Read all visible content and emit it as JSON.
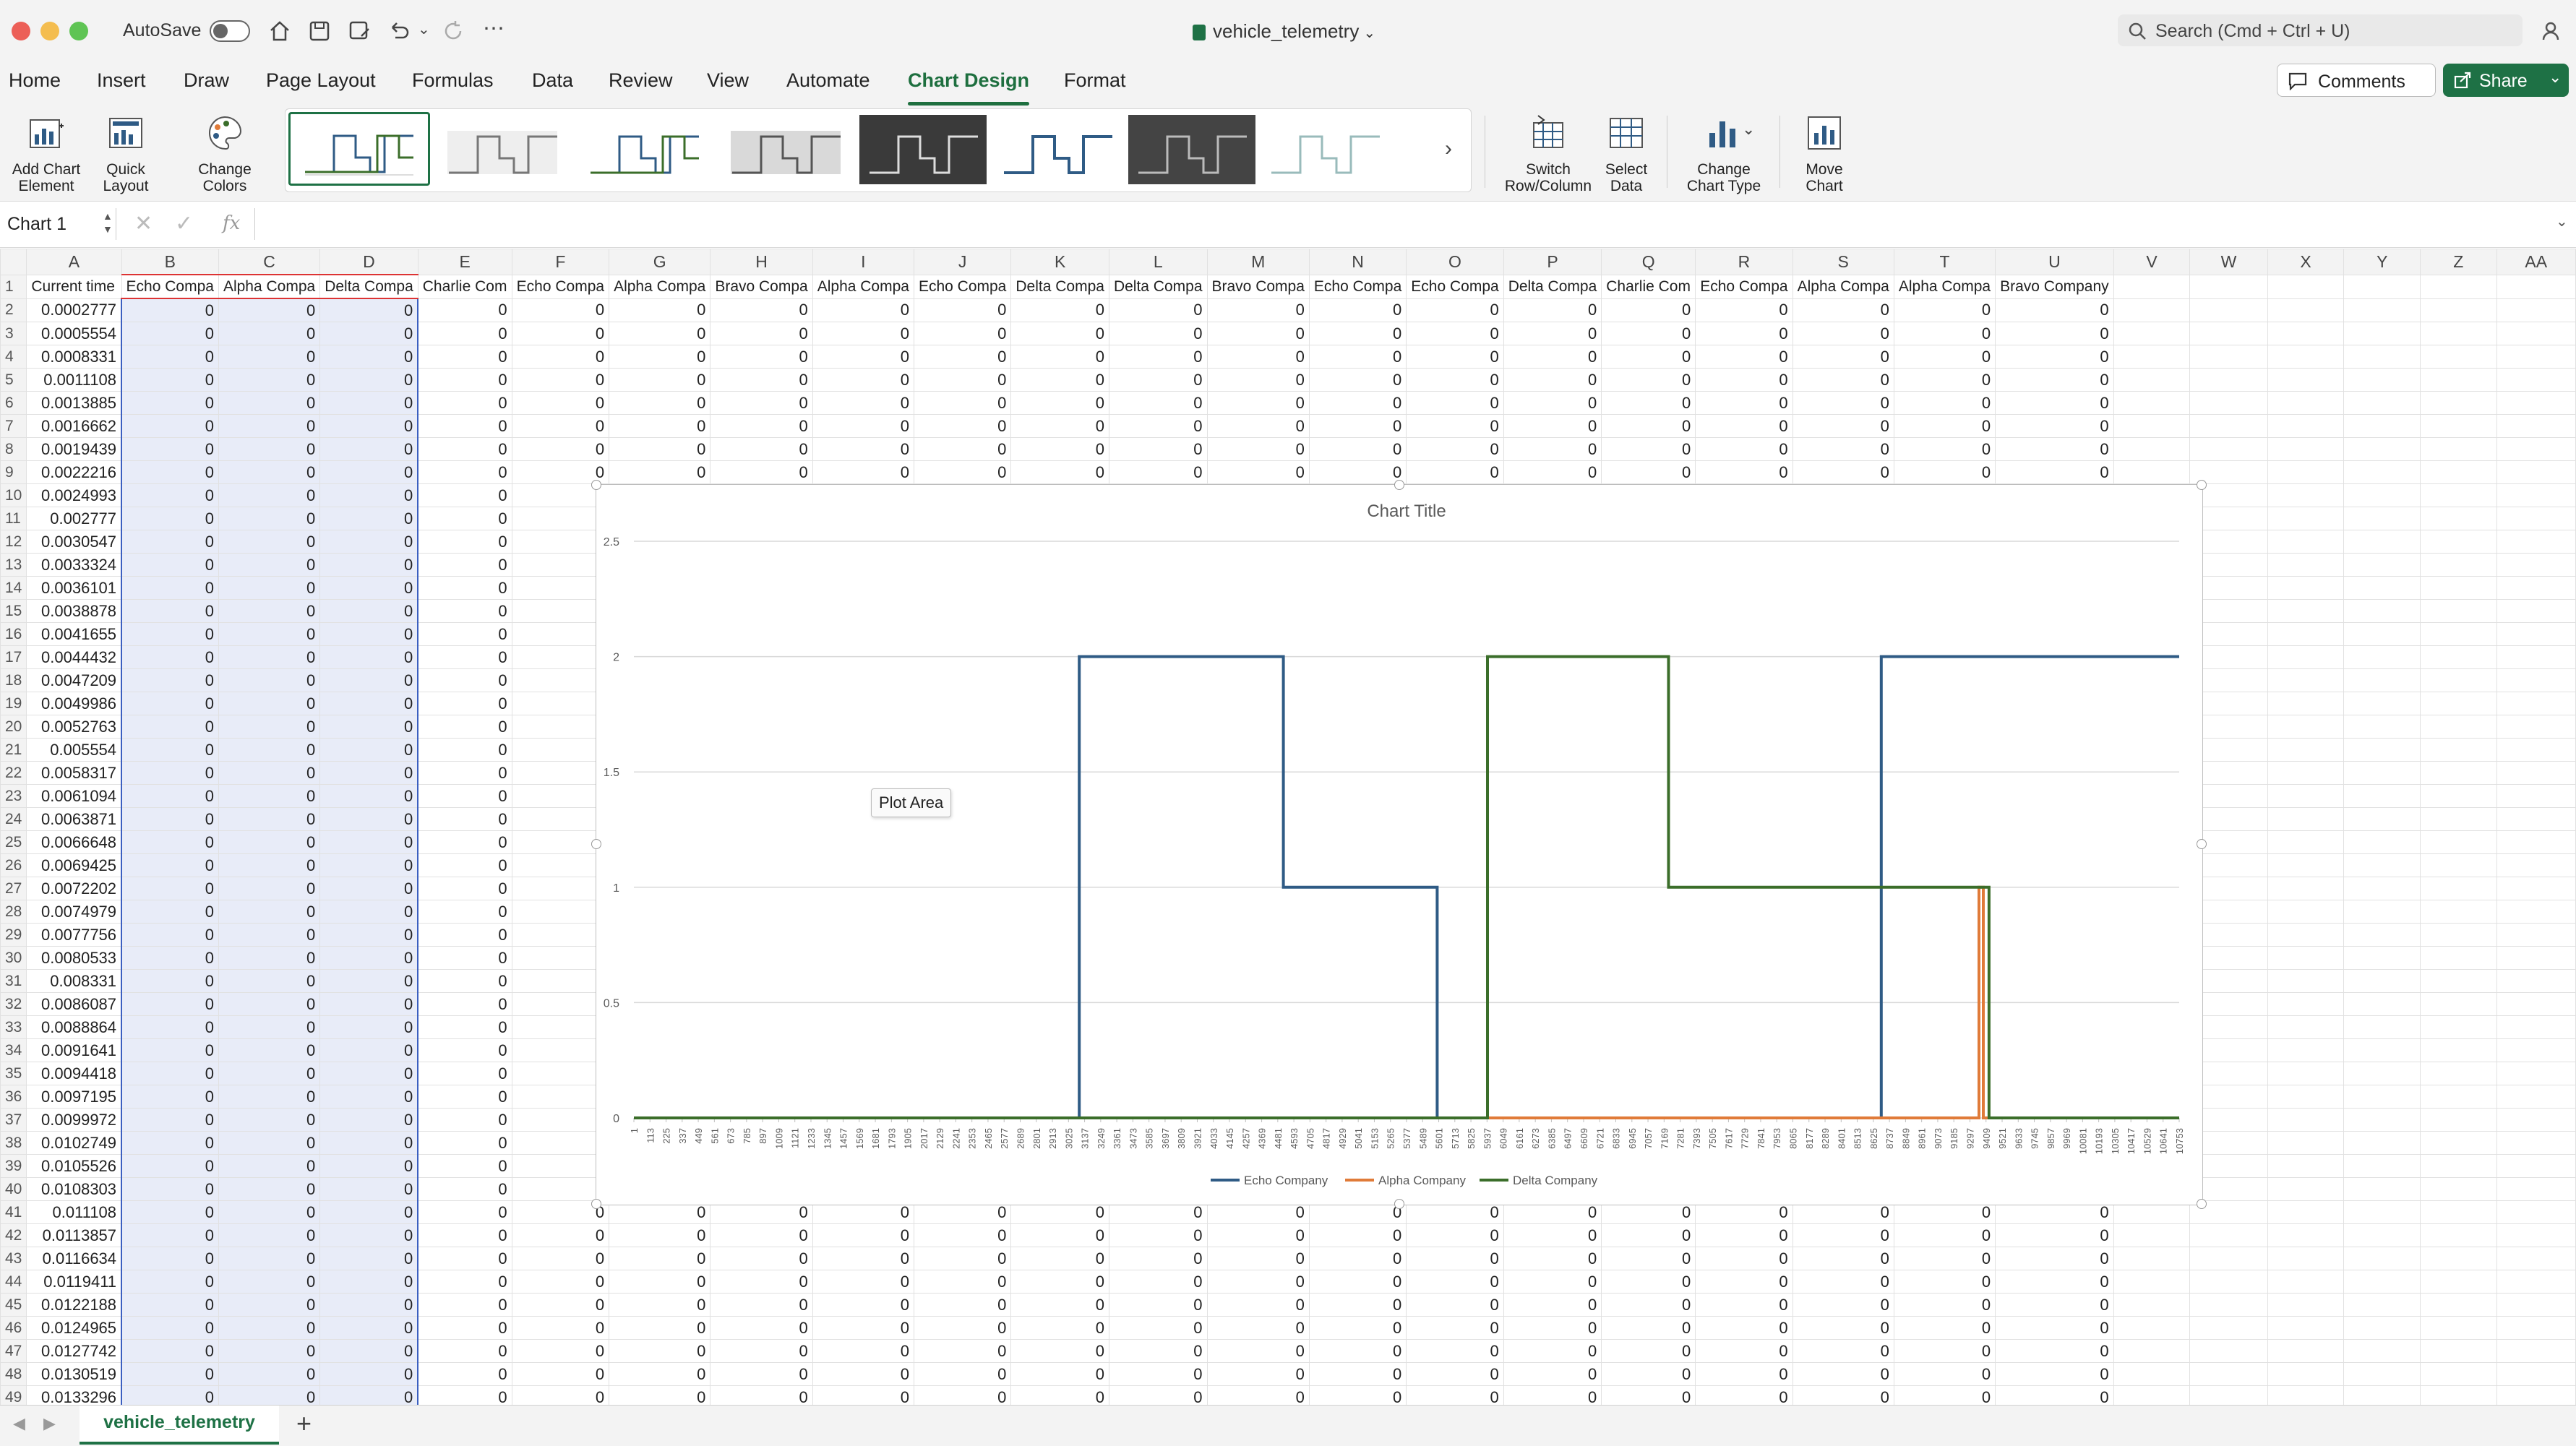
{
  "window": {
    "autosave_label": "AutoSave",
    "file_name": "vehicle_telemetry",
    "search_placeholder": "Search (Cmd + Ctrl + U)",
    "comments_label": "Comments",
    "share_label": "Share"
  },
  "tabs": [
    "Home",
    "Insert",
    "Draw",
    "Page Layout",
    "Formulas",
    "Data",
    "Review",
    "View",
    "Automate",
    "Chart Design",
    "Format"
  ],
  "active_tab": "Chart Design",
  "ribbon": {
    "add_chart_element": "Add Chart\nElement",
    "quick_layout": "Quick\nLayout",
    "change_colors": "Change\nColors",
    "switch_row_column": "Switch\nRow/Column",
    "select_data": "Select\nData",
    "change_chart_type": "Change\nChart Type",
    "move_chart": "Move\nChart",
    "style_count": 8
  },
  "formula_bar": {
    "name_box": "Chart 1",
    "fx": "fx",
    "value": ""
  },
  "columns": [
    "A",
    "B",
    "C",
    "D",
    "E",
    "F",
    "G",
    "H",
    "I",
    "J",
    "K",
    "L",
    "M",
    "N",
    "O",
    "P",
    "Q",
    "R",
    "S",
    "T",
    "U",
    "V",
    "W",
    "X",
    "Y",
    "Z",
    "AA"
  ],
  "header_row": [
    "Current time",
    "Echo Compa",
    "Alpha Compa",
    "Delta Compa",
    "Charlie Com",
    "Echo Compa",
    "Alpha Compa",
    "Bravo Compa",
    "Alpha Compa",
    "Echo Compa",
    "Delta Compa",
    "Delta Compa",
    "Bravo Compa",
    "Echo Compa",
    "Echo Compa",
    "Delta Compa",
    "Charlie Com",
    "Echo Compa",
    "Alpha Compa",
    "Alpha Compa",
    "Bravo Company"
  ],
  "time_values": [
    "0.0002777",
    "0.0005554",
    "0.0008331",
    "0.0011108",
    "0.0013885",
    "0.0016662",
    "0.0019439",
    "0.0022216",
    "0.0024993",
    "0.002777",
    "0.0030547",
    "0.0033324",
    "0.0036101",
    "0.0038878",
    "0.0041655",
    "0.0044432",
    "0.0047209",
    "0.0049986",
    "0.0052763",
    "0.005554",
    "0.0058317",
    "0.0061094",
    "0.0063871",
    "0.0066648",
    "0.0069425",
    "0.0072202",
    "0.0074979",
    "0.0077756",
    "0.0080533",
    "0.008331",
    "0.0086087",
    "0.0088864",
    "0.0091641",
    "0.0094418",
    "0.0097195",
    "0.0099972",
    "0.0102749",
    "0.0105526",
    "0.0108303",
    "0.011108",
    "0.0113857",
    "0.0116634",
    "0.0119411",
    "0.0122188",
    "0.0124965",
    "0.0127742",
    "0.0130519",
    "0.0133296"
  ],
  "cell_value": "0",
  "sheet_tab": "vehicle_telemetry",
  "chart_data": {
    "type": "line",
    "title": "Chart Title",
    "tooltip": "Plot Area",
    "ylim": [
      0,
      2.5
    ],
    "y_ticks": [
      "0",
      "0.5",
      "1",
      "1.5",
      "2",
      "2.5"
    ],
    "x_range": [
      1,
      10753
    ],
    "x_ticks": [
      "1",
      "113",
      "225",
      "337",
      "449",
      "561",
      "673",
      "785",
      "897",
      "1009",
      "1121",
      "1233",
      "1345",
      "1457",
      "1569",
      "1681",
      "1793",
      "1905",
      "2017",
      "2129",
      "2241",
      "2353",
      "2465",
      "2577",
      "2689",
      "2801",
      "2913",
      "3025",
      "3137",
      "3249",
      "3361",
      "3473",
      "3585",
      "3697",
      "3809",
      "3921",
      "4033",
      "4145",
      "4257",
      "4369",
      "4481",
      "4593",
      "4705",
      "4817",
      "4929",
      "5041",
      "5153",
      "5265",
      "5377",
      "5489",
      "5601",
      "5713",
      "5825",
      "5937",
      "6049",
      "6161",
      "6273",
      "6385",
      "6497",
      "6609",
      "6721",
      "6833",
      "6945",
      "7057",
      "7169",
      "7281",
      "7393",
      "7505",
      "7617",
      "7729",
      "7841",
      "7953",
      "8065",
      "8177",
      "8289",
      "8401",
      "8513",
      "8625",
      "8737",
      "8849",
      "8961",
      "9073",
      "9185",
      "9297",
      "9409",
      "9521",
      "9633",
      "9745",
      "9857",
      "9969",
      "10081",
      "10193",
      "10305",
      "10417",
      "10529",
      "10641",
      "10753"
    ],
    "legend_position": "bottom",
    "series": [
      {
        "name": "Echo Company",
        "color": "#2f5b85",
        "points": [
          [
            1,
            0
          ],
          [
            3100,
            0
          ],
          [
            3100,
            2
          ],
          [
            4520,
            2
          ],
          [
            4520,
            1
          ],
          [
            5590,
            1
          ],
          [
            5590,
            0
          ],
          [
            8680,
            0
          ],
          [
            8680,
            2
          ],
          [
            10753,
            2
          ]
        ]
      },
      {
        "name": "Alpha Company",
        "color": "#e07b39",
        "points": [
          [
            1,
            0
          ],
          [
            9360,
            0
          ],
          [
            9360,
            1
          ],
          [
            9390,
            1
          ],
          [
            9390,
            0
          ],
          [
            10753,
            0
          ]
        ]
      },
      {
        "name": "Delta Company",
        "color": "#3b6e2a",
        "points": [
          [
            1,
            0
          ],
          [
            5940,
            0
          ],
          [
            5940,
            2
          ],
          [
            7200,
            2
          ],
          [
            7200,
            1
          ],
          [
            9430,
            1
          ],
          [
            9430,
            0
          ],
          [
            10753,
            0
          ]
        ]
      }
    ]
  }
}
